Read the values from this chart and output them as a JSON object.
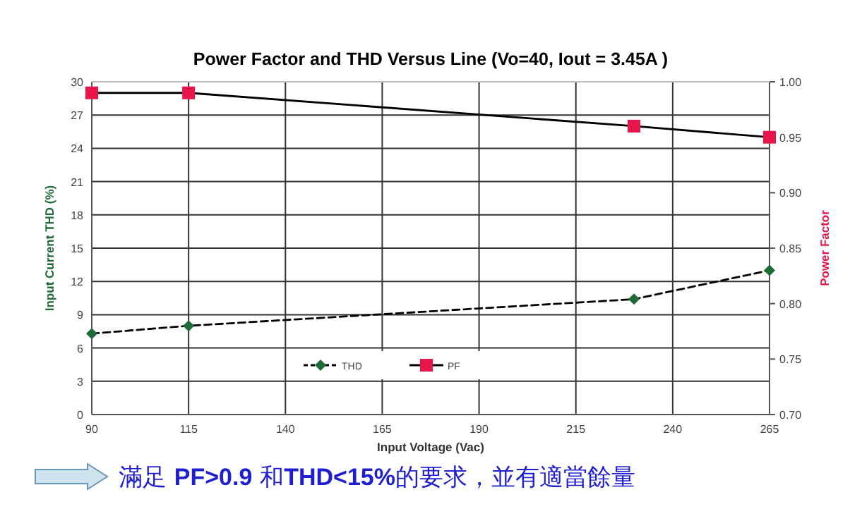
{
  "chart_data": {
    "type": "line",
    "title": "Power Factor and THD Versus Line (Vo=40, Iout = 3.45A )",
    "xlabel": "Input Voltage (Vac)",
    "ylabel": "Input Current THD (%)",
    "y2label": "Power Factor",
    "x": [
      90,
      115,
      230,
      265
    ],
    "series": [
      {
        "name": "THD",
        "color": "#1e6b3a",
        "values": [
          7.3,
          8.0,
          10.4,
          13.0
        ],
        "marker": "diamond",
        "line_style": "dashed"
      },
      {
        "name": "PF",
        "color": "#e8154b",
        "values": [
          0.99,
          0.99,
          0.96,
          0.95
        ],
        "axis": "y2",
        "marker": "square",
        "line_style": "solid"
      }
    ],
    "xlim": [
      90,
      265
    ],
    "xticks": [
      90,
      115,
      140,
      165,
      190,
      215,
      240,
      265
    ],
    "ylim": [
      0,
      30
    ],
    "yticks": [
      0,
      3,
      6,
      9,
      12,
      15,
      18,
      21,
      24,
      27,
      30
    ],
    "y2lim": [
      0.7,
      1.0
    ],
    "y2ticks": [
      {
        "value": 0.7,
        "label": "0.70"
      },
      {
        "value": 0.75,
        "label": "0.75"
      },
      {
        "value": 0.8,
        "label": "0.80"
      },
      {
        "value": 0.85,
        "label": "0.85"
      },
      {
        "value": 0.9,
        "label": "0.90"
      },
      {
        "value": 0.95,
        "label": "0.95"
      },
      {
        "value": 1.0,
        "label": "1.00"
      }
    ],
    "grid": true,
    "legend": "bottom",
    "annotations": [
      "滿足 **PF>0.9** 和**THD<15%**的要求，並有適當餘量"
    ]
  }
}
